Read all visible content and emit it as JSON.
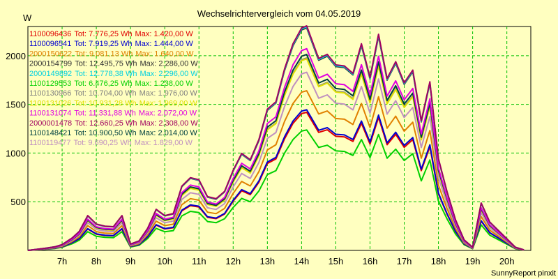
{
  "chart_data": {
    "type": "line",
    "title": "Wechselrichtervergleich vom 04.05.2019",
    "ylabel": "W",
    "xlabel": "",
    "credit": "SunnyReport pinxit",
    "ylim": [
      0,
      2300
    ],
    "yticks": [
      500,
      1000,
      1500,
      2000
    ],
    "xlim": [
      6.0,
      20.7
    ],
    "xticks": [
      {
        "label": "7h",
        "value": 7
      },
      {
        "label": "8h",
        "value": 8
      },
      {
        "label": "9h",
        "value": 9
      },
      {
        "label": "10h",
        "value": 10
      },
      {
        "label": "11h",
        "value": 11
      },
      {
        "label": "12h",
        "value": 12
      },
      {
        "label": "13h",
        "value": 13
      },
      {
        "label": "14h",
        "value": 14
      },
      {
        "label": "15h",
        "value": 15
      },
      {
        "label": "16h",
        "value": 16
      },
      {
        "label": "17h",
        "value": 17
      },
      {
        "label": "18h",
        "value": 18
      },
      {
        "label": "19h",
        "value": 19
      },
      {
        "label": "20h",
        "value": 20
      }
    ],
    "grid": true,
    "legend_position": "top-left",
    "x": [
      6.0,
      6.5,
      6.8,
      7.0,
      7.3,
      7.5,
      7.75,
      8.0,
      8.25,
      8.5,
      8.75,
      9.0,
      9.25,
      9.5,
      9.75,
      10.0,
      10.25,
      10.5,
      10.75,
      11.0,
      11.25,
      11.5,
      11.75,
      12.0,
      12.25,
      12.5,
      12.75,
      13.0,
      13.25,
      13.5,
      13.75,
      14.0,
      14.15,
      14.5,
      14.75,
      15.0,
      15.25,
      15.5,
      15.75,
      16.0,
      16.25,
      16.5,
      16.75,
      17.0,
      17.25,
      17.5,
      17.75,
      18.0,
      18.25,
      18.5,
      18.75,
      19.0,
      19.25,
      19.5,
      19.75,
      20.0,
      20.25,
      20.5
    ],
    "base": [
      0,
      20,
      35,
      55,
      120,
      180,
      330,
      250,
      230,
      225,
      330,
      60,
      90,
      210,
      390,
      330,
      350,
      610,
      690,
      670,
      510,
      490,
      560,
      760,
      920,
      860,
      1050,
      1340,
      1410,
      1720,
      1960,
      2110,
      2130,
      1820,
      1860,
      1760,
      1750,
      1680,
      1960,
      1640,
      2050,
      1630,
      1790,
      1590,
      1710,
      1230,
      1600,
      870,
      560,
      290,
      100,
      30,
      450,
      270,
      190,
      110,
      30,
      5
    ],
    "series": [
      {
        "name": "1100096436",
        "tot": "Tot: 7.776,25 Wh",
        "max": "Max: 1.420,00 W",
        "color": "#e00000",
        "scale": 0.666
      },
      {
        "name": "1100096541",
        "tot": "Tot: 7.919,25 Wh",
        "max": "Max: 1.444,00 W",
        "color": "#0000d0",
        "scale": 0.678
      },
      {
        "name": "2000150622",
        "tot": "Tot: 9.081,13 Wh",
        "max": "Max: 1.640,00 W",
        "color": "#e08000",
        "scale": 0.77
      },
      {
        "name": "2000154799",
        "tot": "Tot: 12.495,75 Wh",
        "max": "Max: 2.286,00 W",
        "color": "#303030",
        "scale": 1.073
      },
      {
        "name": "2000149892",
        "tot": "Tot: 12.778,38 Wh",
        "max": "Max: 2.296,00 W",
        "color": "#00d0e0",
        "scale": 1.078
      },
      {
        "name": "1100129553",
        "tot": "Tot: 6.476,25 Wh",
        "max": "Max: 1.238,00 W",
        "color": "#00d000",
        "scale": 0.581
      },
      {
        "name": "1100130966",
        "tot": "Tot: 10.704,00 Wh",
        "max": "Max: 1.976,00 W",
        "color": "#808080",
        "scale": 0.928
      },
      {
        "name": "1100131026",
        "tot": "Tot: 10.931,28 Wh",
        "max": "Max: 1.969,00 W",
        "color": "#e0e000",
        "scale": 0.924
      },
      {
        "name": "1100131074",
        "tot": "Tot: 11.331,88 Wh",
        "max": "Max: 2.072,00 W",
        "color": "#e000e0",
        "scale": 0.973
      },
      {
        "name": "2000001478",
        "tot": "Tot: 12.660,25 Wh",
        "max": "Max: 2.308,00 W",
        "color": "#a00060",
        "scale": 1.083
      },
      {
        "name": "1100148421",
        "tot": "Tot: 10.900,50 Wh",
        "max": "Max: 2.014,00 W",
        "color": "#004040",
        "scale": 0.945
      },
      {
        "name": "1100119477",
        "tot": "Tot: 9.690,25 Wh",
        "max": "Max: 1.829,00 W",
        "color": "#c090c0",
        "scale": 0.859
      }
    ]
  }
}
